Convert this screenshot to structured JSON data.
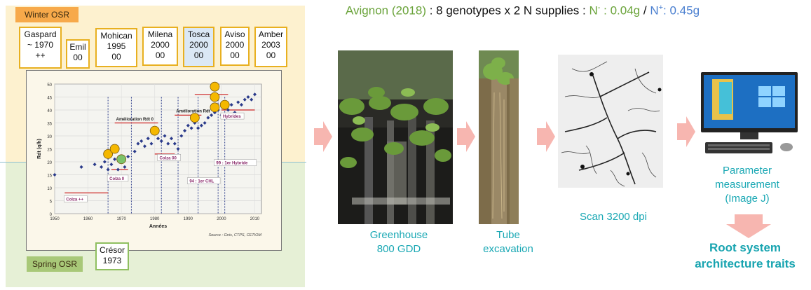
{
  "title": {
    "location": "Avignon (2018)",
    "colon1": " : ",
    "design": "8 genotypes x 2 N supplies",
    "colon2": " : ",
    "nminus_label": "N",
    "nminus_sup": "-",
    "nminus_value": " : 0.04g",
    "slash": " / ",
    "nplus_label": "N",
    "nplus_sup": "+",
    "nplus_value": ": 0.45g"
  },
  "left_panel": {
    "winter_tag": "Winter OSR",
    "spring_tag": "Spring OSR",
    "cards": [
      {
        "name": "Gaspard",
        "year": "~ 1970",
        "code": "++"
      },
      {
        "name": "Emil",
        "year": "",
        "code": "00"
      },
      {
        "name": "Mohican",
        "year": "1995",
        "code": "00"
      },
      {
        "name": "Milena",
        "year": "2000",
        "code": "00"
      },
      {
        "name": "Tosca",
        "year": "2000",
        "code": "00"
      },
      {
        "name": "Aviso",
        "year": "2000",
        "code": "00"
      },
      {
        "name": "Amber",
        "year": "2003",
        "code": "00"
      },
      {
        "name": "Crésor",
        "year": "1973",
        "code": ""
      }
    ]
  },
  "chart_data": {
    "type": "scatter",
    "xlabel": "Années",
    "ylabel": "Rdt (q/h)",
    "xlim": [
      1950,
      2012
    ],
    "ylim": [
      0,
      50
    ],
    "xticks": [
      "1950",
      "1960",
      "1970",
      "1980",
      "1990",
      "2000",
      "2010"
    ],
    "yticks": [
      "0",
      "5",
      "10",
      "15",
      "20",
      "25",
      "30",
      "35",
      "40",
      "45",
      "50"
    ],
    "source": "Source : Gnis, CTPS, CETIOM",
    "grid": true,
    "annotations": [
      "Amélioration Rdt 0",
      "Amélioration Rdt",
      "Hybrides",
      "Colza 00",
      "99 : 1er Hybride",
      "94 : 1er CHL",
      "Colza 0",
      "Colza ++"
    ],
    "series": [
      {
        "values": [
          [
            1950,
            15
          ],
          [
            1958,
            18
          ],
          [
            1962,
            19
          ],
          [
            1964,
            18
          ],
          [
            1965,
            20
          ],
          [
            1966,
            17
          ],
          [
            1967,
            19
          ],
          [
            1968,
            21
          ],
          [
            1969,
            17
          ],
          [
            1970,
            21
          ],
          [
            1971,
            18
          ],
          [
            1972,
            22
          ],
          [
            1974,
            24
          ],
          [
            1975,
            27
          ],
          [
            1976,
            28
          ],
          [
            1977,
            26
          ],
          [
            1978,
            29
          ],
          [
            1979,
            27
          ],
          [
            1980,
            33
          ],
          [
            1981,
            29
          ],
          [
            1982,
            28
          ],
          [
            1983,
            30
          ],
          [
            1984,
            27
          ],
          [
            1985,
            29
          ],
          [
            1986,
            27
          ],
          [
            1987,
            25
          ],
          [
            1988,
            30
          ],
          [
            1989,
            32
          ],
          [
            1990,
            34
          ],
          [
            1991,
            33
          ],
          [
            1992,
            35
          ],
          [
            1993,
            33
          ],
          [
            1994,
            34
          ],
          [
            1995,
            35
          ],
          [
            1996,
            37
          ],
          [
            1997,
            38
          ],
          [
            1998,
            39
          ],
          [
            1999,
            40
          ],
          [
            2000,
            38
          ],
          [
            2001,
            41
          ],
          [
            2002,
            40
          ],
          [
            2003,
            42
          ],
          [
            2004,
            39
          ],
          [
            2005,
            43
          ],
          [
            2006,
            42
          ],
          [
            2007,
            44
          ],
          [
            2008,
            45
          ],
          [
            2009,
            44
          ],
          [
            2010,
            46
          ]
        ]
      }
    ],
    "highlighted": [
      [
        1966,
        23
      ],
      [
        1968,
        25
      ],
      [
        1970,
        21
      ],
      [
        1980,
        32
      ],
      [
        1992,
        37
      ],
      [
        1998,
        41
      ],
      [
        1998,
        45
      ],
      [
        1998,
        49
      ],
      [
        2001,
        42
      ]
    ]
  },
  "steps": [
    {
      "caption_l1": "Greenhouse",
      "caption_l2": "800 GDD"
    },
    {
      "caption_l1": "Tube",
      "caption_l2": "excavation"
    },
    {
      "caption_l1": "Scan 3200 dpi",
      "caption_l2": ""
    },
    {
      "caption_l1": "Parameter",
      "caption_l2": "measurement",
      "caption_l3": "(Image J)"
    }
  ],
  "result": {
    "line1": "Root system",
    "line2": "architecture traits"
  },
  "colors": {
    "arrow": "#f7b6b0",
    "accent": "#1aa8b4",
    "winter_bg": "#fdf1cf",
    "spring_bg": "#e6f0d6",
    "card_border": "#e8b020",
    "highlight_dot": "#f5b800",
    "green_dot": "#7cc36a"
  }
}
